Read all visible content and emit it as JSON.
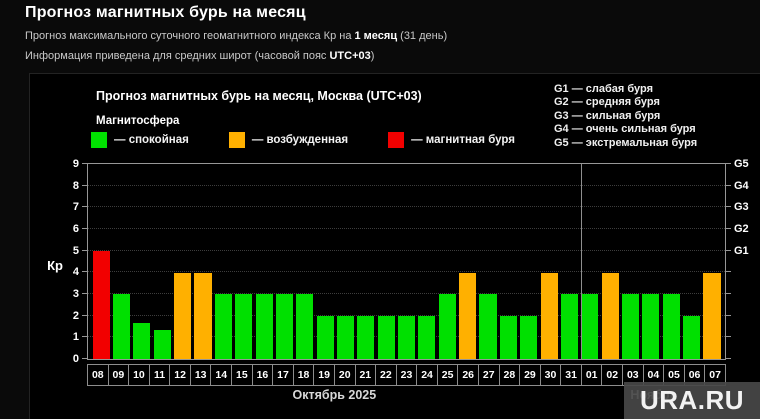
{
  "page": {
    "title": "Прогноз магнитных бурь на месяц",
    "subtitle1": {
      "pre": "Прогноз максимального суточного геомагнитного индекса Кр на ",
      "bold": "1 месяц",
      "post": " (31 день)"
    },
    "subtitle2": {
      "pre": "Информация приведена для средних широт (часовой пояс ",
      "bold": "UTC+03",
      "post": ")"
    }
  },
  "watermark": {
    "text": "URA.RU"
  },
  "chart_data": {
    "type": "bar",
    "title": "Прогноз магнитных бурь на месяц, Москва (UTC+03)",
    "legend_title": "Магнитосфера",
    "legend": [
      {
        "status": "quiet",
        "color": "#00e000",
        "label": "— спокойная"
      },
      {
        "status": "excited",
        "color": "#ffb000",
        "label": "— возбужденная"
      },
      {
        "status": "storm",
        "color": "#f20000",
        "label": "— магнитная буря"
      }
    ],
    "g_scale_legend": [
      "G1 — слабая буря",
      "G2 — средняя буря",
      "G3 — сильная буря",
      "G4 — очень сильная буря",
      "G5 — экстремальная буря"
    ],
    "ylabel": "Кр",
    "ylim": [
      0,
      9
    ],
    "yticks": [
      0,
      1,
      2,
      3,
      4,
      5,
      6,
      7,
      8,
      9
    ],
    "right_axis_labels": [
      {
        "value": 5,
        "label": "G1"
      },
      {
        "value": 6,
        "label": "G2"
      },
      {
        "value": 7,
        "label": "G3"
      },
      {
        "value": 8,
        "label": "G4"
      },
      {
        "value": 9,
        "label": "G5"
      }
    ],
    "categories": [
      "08",
      "09",
      "10",
      "11",
      "12",
      "13",
      "14",
      "15",
      "16",
      "17",
      "18",
      "19",
      "20",
      "21",
      "22",
      "23",
      "24",
      "25",
      "26",
      "27",
      "28",
      "29",
      "30",
      "31",
      "01",
      "02",
      "03",
      "04",
      "05",
      "06",
      "07"
    ],
    "values": [
      5,
      3,
      1.67,
      1.33,
      4,
      4,
      3,
      3,
      3,
      3,
      3,
      2,
      2,
      2,
      2,
      2,
      2,
      3,
      4,
      3,
      2,
      2,
      4,
      3,
      3,
      4,
      3,
      3,
      3,
      2,
      4
    ],
    "statuses": [
      "storm",
      "quiet",
      "quiet",
      "quiet",
      "excited",
      "excited",
      "quiet",
      "quiet",
      "quiet",
      "quiet",
      "quiet",
      "quiet",
      "quiet",
      "quiet",
      "quiet",
      "quiet",
      "quiet",
      "quiet",
      "excited",
      "quiet",
      "quiet",
      "quiet",
      "excited",
      "quiet",
      "quiet",
      "excited",
      "quiet",
      "quiet",
      "quiet",
      "quiet",
      "excited"
    ],
    "months": [
      {
        "label": "Октябрь 2025",
        "days": 24
      },
      {
        "label": "Ноябрь",
        "days": 7
      }
    ],
    "colors": {
      "quiet": "#00e000",
      "excited": "#ffb000",
      "storm": "#f20000"
    },
    "grid": "dotted horizontal"
  }
}
